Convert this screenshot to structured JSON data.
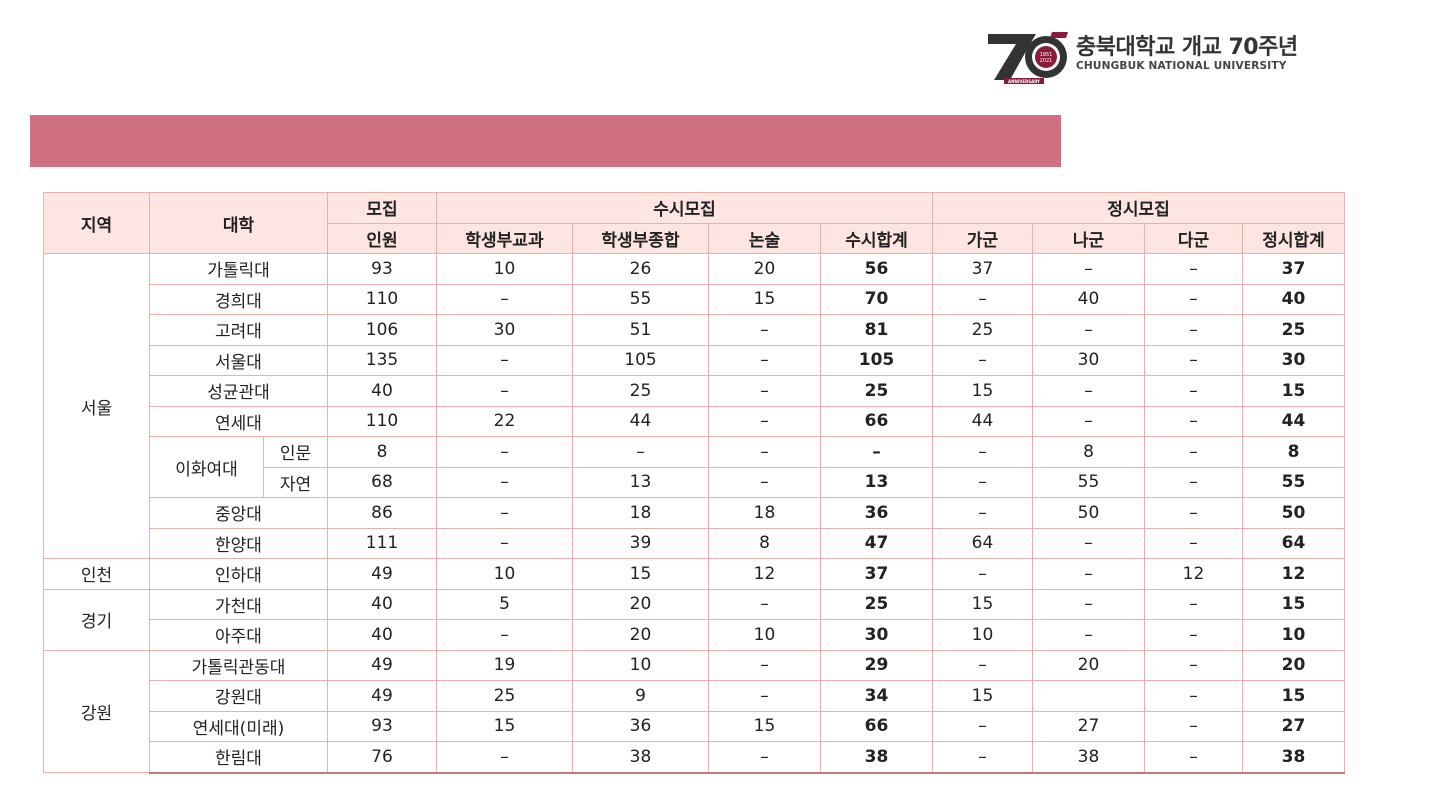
{
  "logo": {
    "mark_text": "70",
    "mark_sub": "ANNIVERSARY",
    "mark_years": [
      "1951",
      "2021"
    ],
    "title": "충북대학교 개교 70주년",
    "subtitle": "CHUNGBUK NATIONAL UNIVERSITY"
  },
  "colors": {
    "banner": "#cf6f80",
    "header_bg": "#fde5e2",
    "border": "#eab0ae",
    "logo_dark": "#333333",
    "logo_accent": "#8a1c3a"
  },
  "table": {
    "headers": {
      "region": "지역",
      "university": "대학",
      "quota_line1": "모집",
      "quota_line2": "인원",
      "susi": "수시모집",
      "jeongsi": "정시모집",
      "susi_cols": [
        "학생부교과",
        "학생부종합",
        "논술",
        "수시합계"
      ],
      "jeongsi_cols": [
        "가군",
        "나군",
        "다군",
        "정시합계"
      ]
    },
    "regions": {
      "seoul": "서울",
      "incheon": "인천",
      "gyeonggi": "경기",
      "gangwon": "강원"
    },
    "ewha": {
      "name": "이화여대",
      "sub": [
        "인문",
        "자연"
      ]
    },
    "rows": [
      {
        "name": "가톨릭대",
        "values": [
          "93",
          "10",
          "26",
          "20",
          "56",
          "37",
          "–",
          "–",
          "37"
        ]
      },
      {
        "name": "경희대",
        "values": [
          "110",
          "–",
          "55",
          "15",
          "70",
          "–",
          "40",
          "–",
          "40"
        ]
      },
      {
        "name": "고려대",
        "values": [
          "106",
          "30",
          "51",
          "–",
          "81",
          "25",
          "–",
          "–",
          "25"
        ]
      },
      {
        "name": "서울대",
        "values": [
          "135",
          "–",
          "105",
          "–",
          "105",
          "–",
          "30",
          "–",
          "30"
        ]
      },
      {
        "name": "성균관대",
        "values": [
          "40",
          "–",
          "25",
          "–",
          "25",
          "15",
          "–",
          "–",
          "15"
        ]
      },
      {
        "name": "연세대",
        "values": [
          "110",
          "22",
          "44",
          "–",
          "66",
          "44",
          "–",
          "–",
          "44"
        ]
      },
      {
        "name": "인문",
        "values": [
          "8",
          "–",
          "–",
          "–",
          "–",
          "–",
          "8",
          "–",
          "8"
        ]
      },
      {
        "name": "자연",
        "values": [
          "68",
          "–",
          "13",
          "–",
          "13",
          "–",
          "55",
          "–",
          "55"
        ]
      },
      {
        "name": "중앙대",
        "values": [
          "86",
          "–",
          "18",
          "18",
          "36",
          "–",
          "50",
          "–",
          "50"
        ]
      },
      {
        "name": "한양대",
        "values": [
          "111",
          "–",
          "39",
          "8",
          "47",
          "64",
          "–",
          "–",
          "64"
        ]
      },
      {
        "name": "인하대",
        "values": [
          "49",
          "10",
          "15",
          "12",
          "37",
          "–",
          "–",
          "12",
          "12"
        ]
      },
      {
        "name": "가천대",
        "values": [
          "40",
          "5",
          "20",
          "–",
          "25",
          "15",
          "–",
          "–",
          "15"
        ]
      },
      {
        "name": "아주대",
        "values": [
          "40",
          "–",
          "20",
          "10",
          "30",
          "10",
          "–",
          "–",
          "10"
        ]
      },
      {
        "name": "가톨릭관동대",
        "values": [
          "49",
          "19",
          "10",
          "–",
          "29",
          "–",
          "20",
          "–",
          "20"
        ]
      },
      {
        "name": "강원대",
        "values": [
          "49",
          "25",
          "9",
          "–",
          "34",
          "15",
          "",
          "–",
          "15"
        ]
      },
      {
        "name": "연세대(미래)",
        "values": [
          "93",
          "15",
          "36",
          "15",
          "66",
          "–",
          "27",
          "–",
          "27"
        ]
      },
      {
        "name": "한림대",
        "values": [
          "76",
          "–",
          "38",
          "–",
          "38",
          "–",
          "38",
          "–",
          "38"
        ]
      }
    ]
  }
}
